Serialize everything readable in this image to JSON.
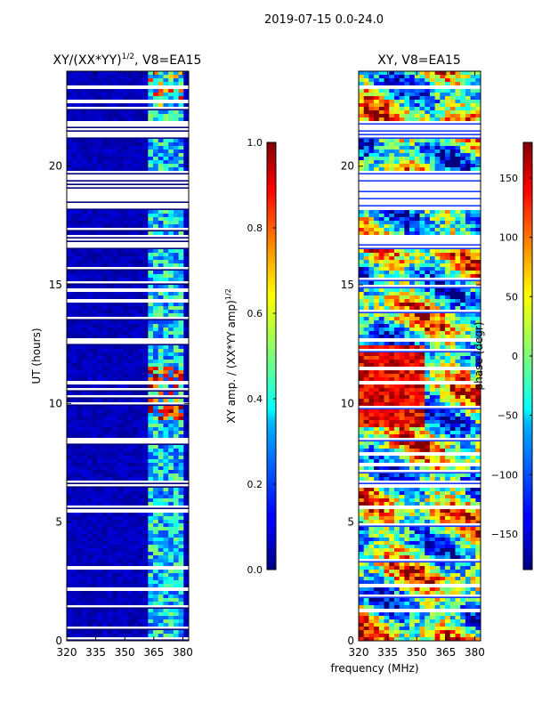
{
  "suptitle": "2019-07-15 0.0-24.0",
  "chart_data": [
    {
      "type": "heatmap",
      "title_main": "XY/(XX*YY)",
      "title_exp": "1/2",
      "title_tail": ", V8=EA15",
      "xlim": [
        320,
        383
      ],
      "ylim": [
        0,
        24
      ],
      "xticks": [
        "320",
        "335",
        "350",
        "365",
        "380"
      ],
      "xtick_values": [
        320,
        335,
        350,
        365,
        380
      ],
      "yticks": [
        "0",
        "5",
        "10",
        "15",
        "20"
      ],
      "ytick_values": [
        0,
        5,
        10,
        15,
        20
      ],
      "ylabel": "UT (hours)",
      "colorbar": {
        "label_main": "XY amp. / (XX*YY amp)",
        "label_exp": "1/2",
        "range": [
          0,
          1
        ],
        "ticks": [
          "0.0",
          "0.2",
          "0.4",
          "0.6",
          "0.8",
          "1.0"
        ],
        "tick_values": [
          0,
          0.2,
          0.4,
          0.6,
          0.8,
          1.0
        ]
      },
      "gaps_hours": [
        [
          18.1,
          19.8
        ],
        [
          21.2,
          21.9
        ],
        [
          16.5,
          17.1
        ],
        [
          12.55,
          12.75
        ],
        [
          8.35,
          8.55
        ],
        [
          6.45,
          6.75
        ],
        [
          5.55,
          5.75
        ],
        [
          23.2,
          23.4
        ]
      ],
      "bright_band_mhz": [
        363,
        381
      ]
    },
    {
      "type": "heatmap",
      "title": "XY, V8=EA15",
      "xlim": [
        320,
        383
      ],
      "ylim": [
        0,
        24
      ],
      "xticks": [
        "320",
        "335",
        "350",
        "365",
        "380"
      ],
      "xtick_values": [
        320,
        335,
        350,
        365,
        380
      ],
      "yticks": [
        "0",
        "5",
        "10",
        "15",
        "20"
      ],
      "ytick_values": [
        0,
        5,
        10,
        15,
        20
      ],
      "xlabel": "frequency (MHz)",
      "colorbar": {
        "label": "phase (degr)",
        "range": [
          -180,
          180
        ],
        "ticks": [
          "−150",
          "−100",
          "−50",
          "0",
          "50",
          "100",
          "150"
        ],
        "tick_values": [
          -150,
          -100,
          -50,
          0,
          50,
          100,
          150
        ]
      },
      "gaps_hours": [
        [
          18.1,
          19.8
        ],
        [
          21.2,
          21.9
        ],
        [
          16.5,
          17.1
        ],
        [
          12.55,
          12.75
        ],
        [
          8.35,
          8.55
        ],
        [
          6.45,
          6.75
        ],
        [
          5.55,
          5.75
        ],
        [
          23.2,
          23.4
        ]
      ]
    }
  ],
  "colors": {
    "jet_low": "#00007f",
    "jet_high": "#7f0000",
    "gap": "#ffffff"
  }
}
